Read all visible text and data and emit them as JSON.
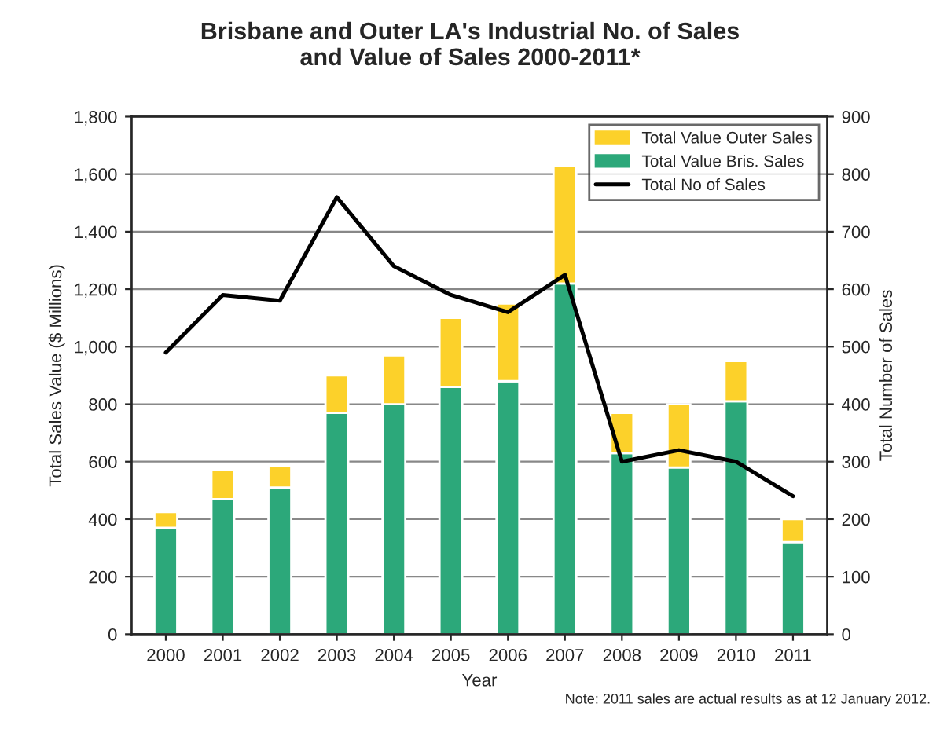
{
  "chart_data": {
    "type": "bar",
    "title": "Brisbane and Outer LA's Industrial No. of Sales\nand Value of Sales 2000-2011*",
    "xlabel": "Year",
    "ylabel": "Total Sales Value ($ Millions)",
    "y2label": "Total Number of Sales",
    "categories": [
      "2000",
      "2001",
      "2002",
      "2003",
      "2004",
      "2005",
      "2006",
      "2007",
      "2008",
      "2009",
      "2010",
      "2011"
    ],
    "stacked": true,
    "series": [
      {
        "name": "Total Value Bris. Sales",
        "color": "#2ca87a",
        "values": [
          370,
          470,
          510,
          770,
          800,
          860,
          880,
          1220,
          630,
          580,
          810,
          320
        ]
      },
      {
        "name": "Total Value Outer Sales",
        "color": "#fcd12a",
        "values": [
          55,
          100,
          75,
          130,
          170,
          240,
          270,
          410,
          140,
          220,
          140,
          80
        ]
      },
      {
        "name": "Total No of Sales",
        "type": "line",
        "axis": "y2",
        "color": "#000000",
        "values": [
          490,
          590,
          580,
          760,
          640,
          590,
          560,
          625,
          300,
          320,
          300,
          240
        ]
      }
    ],
    "ylim": [
      0,
      1800
    ],
    "yticks": [
      {
        "value": 0,
        "label": "0"
      },
      {
        "value": 200,
        "label": "200"
      },
      {
        "value": 400,
        "label": "400"
      },
      {
        "value": 600,
        "label": "600"
      },
      {
        "value": 800,
        "label": "800"
      },
      {
        "value": 1000,
        "label": "1,000"
      },
      {
        "value": 1200,
        "label": "1,200"
      },
      {
        "value": 1400,
        "label": "1,400"
      },
      {
        "value": 1600,
        "label": "1,600"
      },
      {
        "value": 1800,
        "label": "1,800"
      }
    ],
    "y2lim": [
      0,
      900
    ],
    "y2ticks": [
      0,
      100,
      200,
      300,
      400,
      500,
      600,
      700,
      800,
      900
    ],
    "grid": "y",
    "legend": "top right",
    "marker": "none",
    "line_style": "solid",
    "annotations": [
      "Note: 2011 sales are actual results as at 12 January 2012."
    ]
  }
}
